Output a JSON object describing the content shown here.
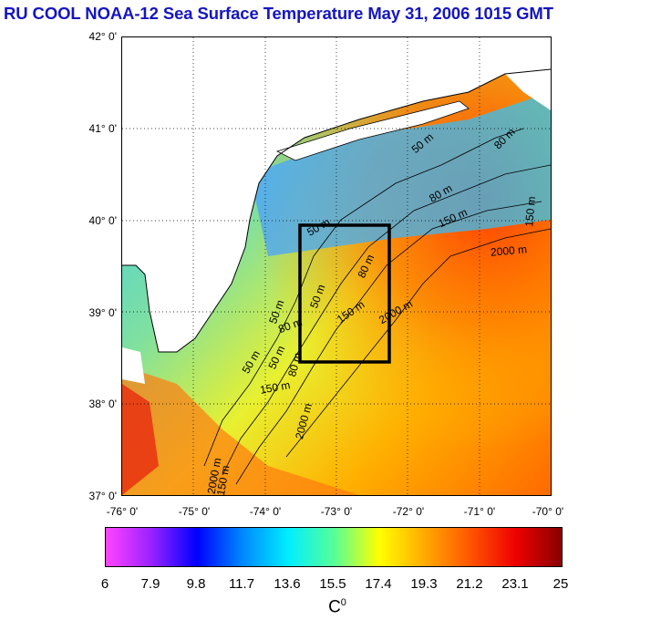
{
  "title": "RU COOL  NOAA-12 Sea Surface Temperature May 31, 2006 1015 GMT",
  "map": {
    "lon_range": [
      -76,
      -70
    ],
    "lat_range": [
      37,
      42
    ],
    "y_ticks": [
      "42° 0'",
      "41° 0'",
      "40° 0'",
      "39° 0'",
      "38° 0'",
      "37° 0'"
    ],
    "x_ticks": [
      "-76° 0'",
      "-75° 0'",
      "-74° 0'",
      "-73° 0'",
      "-72° 0'",
      "-71° 0'",
      "-70° 0'"
    ],
    "grid": "dotted",
    "box": {
      "lon": [
        -73.5,
        -72.3
      ],
      "lat": [
        38.5,
        40.0
      ]
    },
    "contour_labels": [
      "50 m",
      "50 m",
      "50 m",
      "50 m",
      "50 m",
      "80 m",
      "80 m",
      "80 m",
      "80 m",
      "150 m",
      "150 m",
      "150 m",
      "150 m",
      "2000 m",
      "2000 m",
      "2000 m",
      "2000 m",
      "50 m",
      "80 m",
      "150 m"
    ]
  },
  "colorbar": {
    "labels": [
      "6",
      "7.9",
      "9.8",
      "11.7",
      "13.6",
      "15.5",
      "17.4",
      "19.3",
      "21.2",
      "23.1",
      "25"
    ],
    "range": [
      6,
      25
    ],
    "unit_base": "C",
    "unit_sup": "0",
    "colors": [
      "#ff44ff",
      "#9922ff",
      "#0000ff",
      "#0088ff",
      "#00eeff",
      "#55ff99",
      "#ffff00",
      "#ffaa00",
      "#ff5500",
      "#ee0000",
      "#880000"
    ]
  }
}
